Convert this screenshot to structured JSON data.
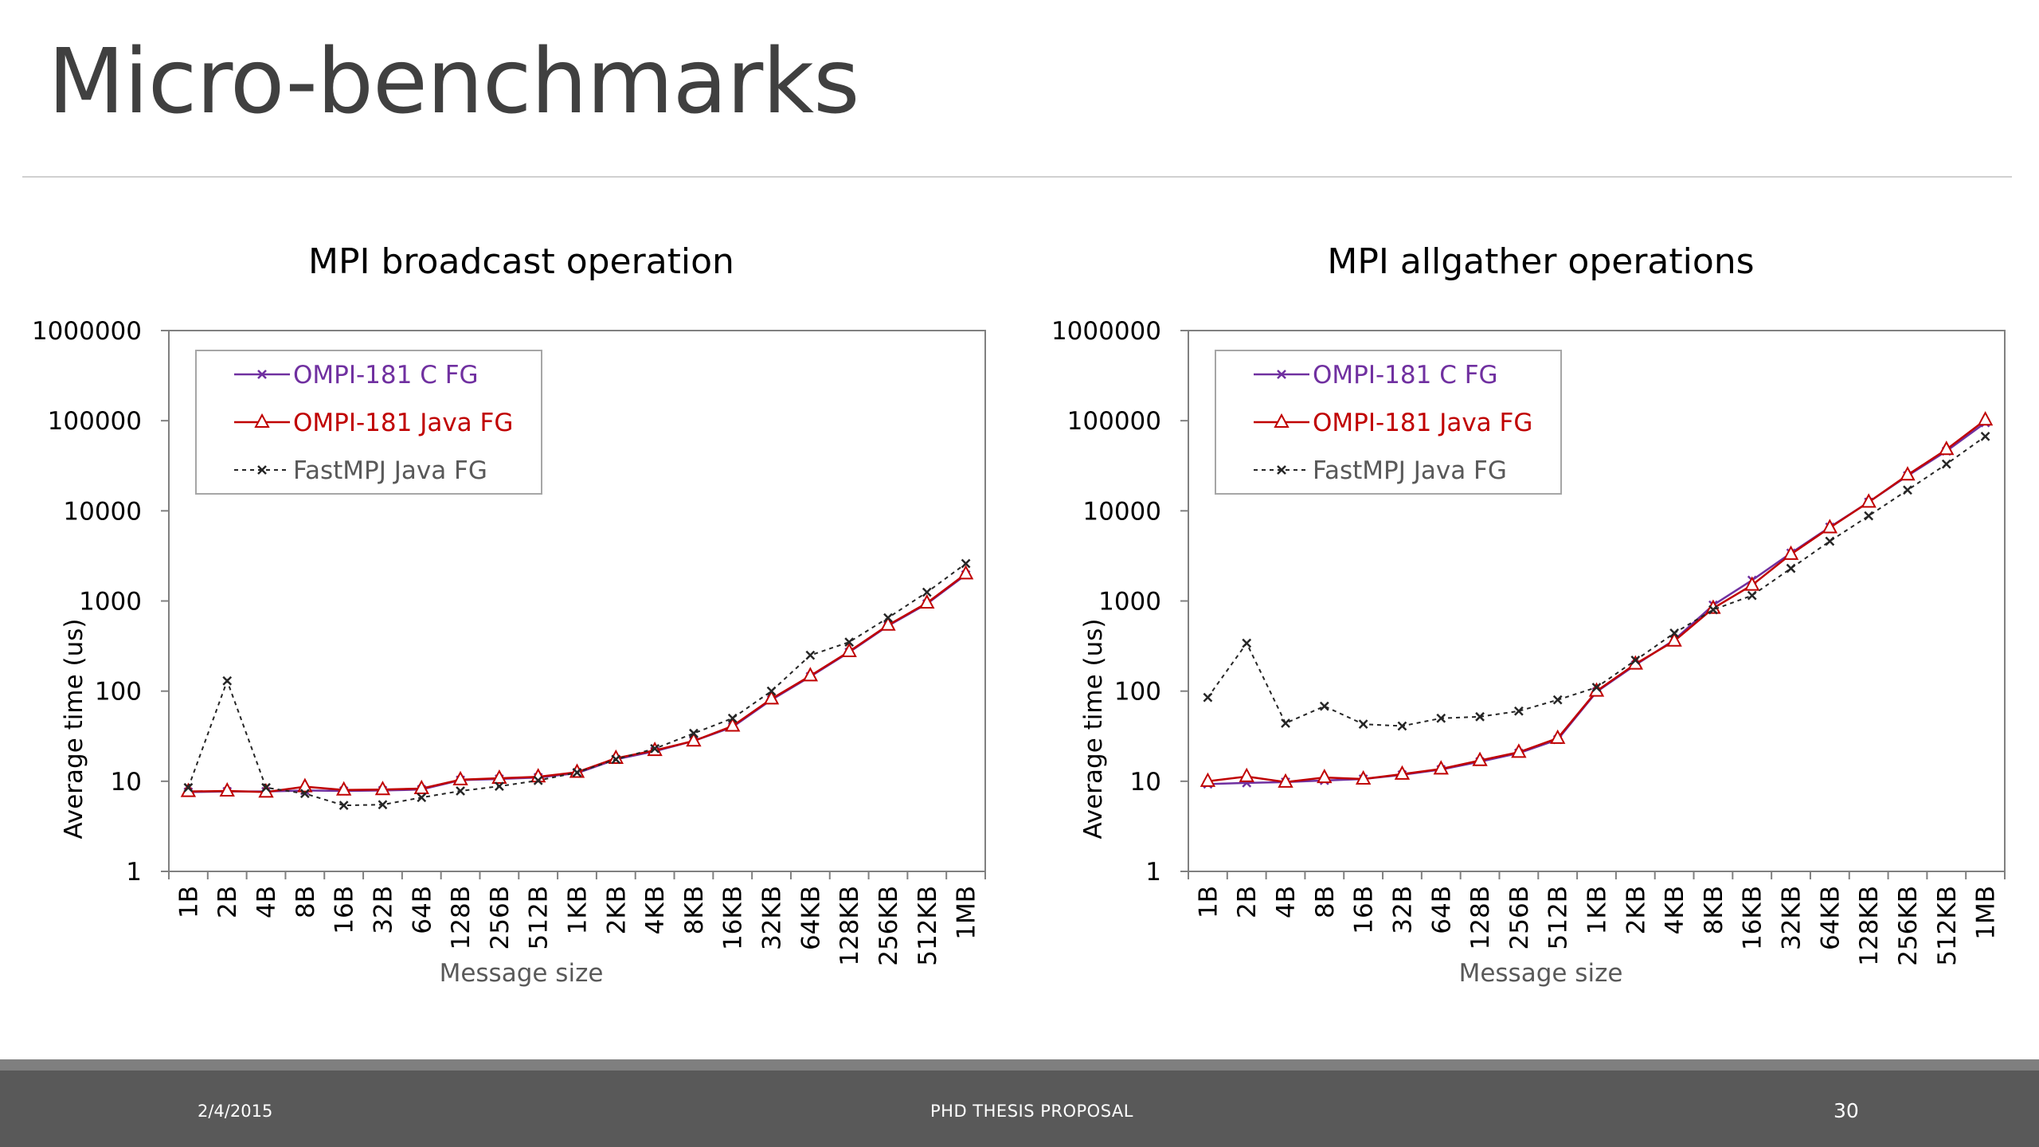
{
  "slide": {
    "title": "Micro-benchmarks",
    "footer": {
      "date": "2/4/2015",
      "center": "PHD THESIS PROPOSAL",
      "page": "30"
    }
  },
  "chart_data": [
    {
      "type": "line",
      "title": "MPI broadcast operation",
      "xlabel": "Message size",
      "ylabel": "Average time (us)",
      "yscale": "log",
      "ylim": [
        1,
        1000000
      ],
      "yticks": [
        "1",
        "10",
        "100",
        "1000",
        "10000",
        "100000",
        "1000000"
      ],
      "categories": [
        "1B",
        "2B",
        "4B",
        "8B",
        "16B",
        "32B",
        "64B",
        "128B",
        "256B",
        "512B",
        "1KB",
        "2KB",
        "4KB",
        "8KB",
        "16KB",
        "32KB",
        "64KB",
        "128KB",
        "256KB",
        "512KB",
        "1MB"
      ],
      "legend_position": "top-left",
      "grid": false,
      "series": [
        {
          "name": "OMPI-181 C FG",
          "color": "#7030a0",
          "marker": "x",
          "dashed": false,
          "values": [
            7.6,
            7.7,
            7.7,
            7.9,
            7.8,
            7.9,
            8.1,
            10.3,
            10.6,
            11.0,
            12.3,
            17.5,
            21.5,
            28,
            40,
            80,
            145,
            270,
            530,
            930,
            1950
          ]
        },
        {
          "name": "OMPI-181 Java FG",
          "color": "#c00000",
          "marker": "triangle",
          "dashed": false,
          "values": [
            7.7,
            7.8,
            7.6,
            8.7,
            8.0,
            8.1,
            8.3,
            10.4,
            10.8,
            11.2,
            12.6,
            18.0,
            22.0,
            28,
            41,
            82,
            148,
            275,
            540,
            950,
            2000
          ]
        },
        {
          "name": "FastMPJ Java FG",
          "color": "#262626",
          "marker": "x",
          "dashed": true,
          "values": [
            8.5,
            130,
            8.5,
            7.3,
            5.4,
            5.5,
            6.6,
            7.8,
            8.8,
            10.2,
            12.5,
            17.5,
            23,
            34,
            50,
            100,
            250,
            350,
            650,
            1250,
            2600
          ]
        }
      ]
    },
    {
      "type": "line",
      "title": "MPI allgather operations",
      "xlabel": "Message size",
      "ylabel": "Average time (us)",
      "yscale": "log",
      "ylim": [
        1,
        1000000
      ],
      "yticks": [
        "1",
        "10",
        "100",
        "1000",
        "10000",
        "100000",
        "1000000"
      ],
      "categories": [
        "1B",
        "2B",
        "4B",
        "8B",
        "16B",
        "32B",
        "64B",
        "128B",
        "256B",
        "512B",
        "1KB",
        "2KB",
        "4KB",
        "8KB",
        "16KB",
        "32KB",
        "64KB",
        "128KB",
        "256KB",
        "512KB",
        "1MB"
      ],
      "legend_position": "top-left",
      "grid": false,
      "series": [
        {
          "name": "OMPI-181 C FG",
          "color": "#7030a0",
          "marker": "x",
          "dashed": false,
          "values": [
            9.3,
            9.6,
            9.8,
            10.2,
            10.6,
            11.8,
            13.5,
            16.5,
            20.5,
            29,
            98,
            195,
            370,
            900,
            1700,
            3400,
            6600,
            12500,
            24500,
            46000,
            95000
          ]
        },
        {
          "name": "OMPI-181 Java FG",
          "color": "#c00000",
          "marker": "triangle",
          "dashed": false,
          "values": [
            10.0,
            11.3,
            9.8,
            11.0,
            10.6,
            12.0,
            13.7,
            17.0,
            21.0,
            30,
            100,
            200,
            360,
            830,
            1500,
            3300,
            6500,
            12500,
            25000,
            48000,
            102000
          ]
        },
        {
          "name": "FastMPJ Java FG",
          "color": "#262626",
          "marker": "x",
          "dashed": true,
          "values": [
            85,
            340,
            44,
            68,
            43,
            41,
            50,
            52,
            60,
            80,
            110,
            220,
            440,
            800,
            1150,
            2300,
            4600,
            8800,
            17000,
            33000,
            67000
          ]
        }
      ]
    }
  ]
}
